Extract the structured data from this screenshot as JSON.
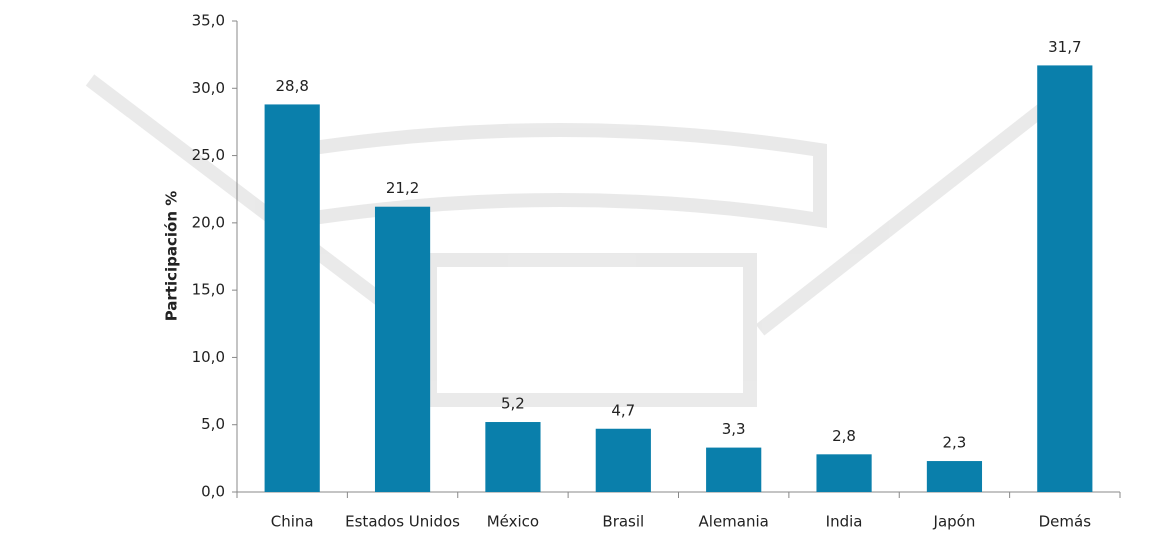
{
  "chart_data": {
    "type": "bar",
    "y_label": "Participación %",
    "categories": [
      "China",
      "Estados Unidos",
      "México",
      "Brasil",
      "Alemania",
      "India",
      "Japón",
      "Demás"
    ],
    "values": [
      28.8,
      21.2,
      5.2,
      4.7,
      3.3,
      2.8,
      2.3,
      31.7
    ],
    "value_labels": [
      "28,8",
      "21,2",
      "5,2",
      "4,7",
      "3,3",
      "2,8",
      "2,3",
      "31,7"
    ],
    "color": "#0a7fab",
    "ylim": [
      0,
      35
    ],
    "yticks": [
      {
        "value": 0,
        "label": "0,0"
      },
      {
        "value": 5,
        "label": "5,0"
      },
      {
        "value": 10,
        "label": "10,0"
      },
      {
        "value": 15,
        "label": "15,0"
      },
      {
        "value": 20,
        "label": "20,0"
      },
      {
        "value": 25,
        "label": "25,0"
      },
      {
        "value": 30,
        "label": "30,0"
      },
      {
        "value": 35,
        "label": "35,0"
      }
    ],
    "grid": false
  }
}
